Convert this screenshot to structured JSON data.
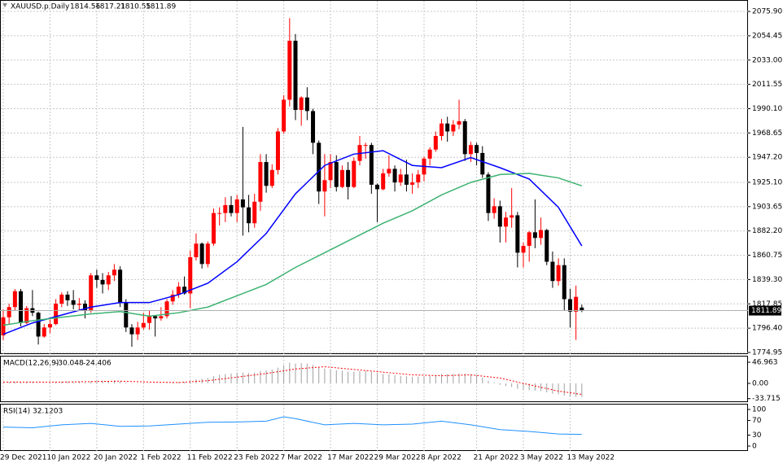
{
  "chart_data": [
    {
      "type": "candlestick",
      "title": "XAUUSD.p,Daily",
      "categories": [
        "29 Dec 2021",
        null,
        null,
        null,
        null,
        null,
        null,
        null,
        "10 Jan 2022",
        null,
        null,
        null,
        null,
        null,
        null,
        null,
        "20 Jan 2022",
        null,
        null,
        null,
        null,
        null,
        null,
        null,
        "1 Feb 2022",
        null,
        null,
        null,
        null,
        null,
        null,
        null,
        "11 Feb 2022",
        null,
        null,
        null,
        null,
        null,
        null,
        null,
        "23 Feb 2022",
        null,
        null,
        null,
        null,
        null,
        null,
        null,
        "7 Mar 2022",
        null,
        null,
        null,
        null,
        null,
        null,
        null,
        "17 Mar 2022",
        null,
        null,
        null,
        null,
        null,
        null,
        null,
        "29 Mar 2022",
        null,
        null,
        null,
        null,
        null,
        null,
        null,
        "8 Apr 2022",
        null,
        null,
        null,
        null,
        null,
        null,
        null,
        null,
        "21 Apr 2022",
        null,
        null,
        null,
        null,
        null,
        null,
        null,
        "3 May 2022",
        null,
        null,
        null,
        null,
        null,
        null,
        null,
        "13 May 2022",
        null,
        null
      ],
      "ohlc": [
        [
          1790,
          1813,
          1786,
          1806
        ],
        [
          1806,
          1818,
          1800,
          1815
        ],
        [
          1815,
          1831,
          1812,
          1829
        ],
        [
          1829,
          1831,
          1798,
          1801
        ],
        [
          1801,
          1816,
          1800,
          1814
        ],
        [
          1814,
          1830,
          1807,
          1810
        ],
        [
          1810,
          1811,
          1782,
          1789
        ],
        [
          1789,
          1800,
          1788,
          1797
        ],
        [
          1797,
          1804,
          1792,
          1800
        ],
        [
          1800,
          1822,
          1799,
          1818
        ],
        [
          1818,
          1828,
          1815,
          1826
        ],
        [
          1826,
          1829,
          1816,
          1821
        ],
        [
          1821,
          1830,
          1813,
          1817
        ],
        [
          1817,
          1823,
          1812,
          1818
        ],
        [
          1818,
          1821,
          1805,
          1812
        ],
        [
          1812,
          1845,
          1810,
          1843
        ],
        [
          1843,
          1848,
          1832,
          1839
        ],
        [
          1839,
          1845,
          1827,
          1835
        ],
        [
          1835,
          1846,
          1830,
          1843
        ],
        [
          1843,
          1853,
          1838,
          1848
        ],
        [
          1848,
          1851,
          1815,
          1819
        ],
        [
          1819,
          1822,
          1793,
          1797
        ],
        [
          1797,
          1800,
          1780,
          1791
        ],
        [
          1791,
          1802,
          1786,
          1797
        ],
        [
          1797,
          1810,
          1795,
          1801
        ],
        [
          1801,
          1812,
          1795,
          1807
        ],
        [
          1807,
          1808,
          1789,
          1805
        ],
        [
          1805,
          1815,
          1803,
          1807
        ],
        [
          1807,
          1822,
          1805,
          1820
        ],
        [
          1820,
          1830,
          1817,
          1826
        ],
        [
          1826,
          1837,
          1823,
          1833
        ],
        [
          1833,
          1842,
          1826,
          1827
        ],
        [
          1827,
          1865,
          1814,
          1859
        ],
        [
          1859,
          1880,
          1856,
          1871
        ],
        [
          1871,
          1872,
          1849,
          1853
        ],
        [
          1853,
          1873,
          1850,
          1871
        ],
        [
          1871,
          1902,
          1869,
          1898
        ],
        [
          1898,
          1903,
          1887,
          1898
        ],
        [
          1898,
          1912,
          1890,
          1905
        ],
        [
          1905,
          1913,
          1895,
          1898
        ],
        [
          1898,
          1914,
          1890,
          1910
        ],
        [
          1910,
          1974,
          1878,
          1903
        ],
        [
          1903,
          1914,
          1881,
          1889
        ],
        [
          1889,
          1915,
          1885,
          1908
        ],
        [
          1908,
          1950,
          1900,
          1943
        ],
        [
          1943,
          1950,
          1916,
          1922
        ],
        [
          1922,
          1941,
          1920,
          1936
        ],
        [
          1936,
          1973,
          1932,
          1970
        ],
        [
          1970,
          2002,
          1968,
          1998
        ],
        [
          1998,
          2070,
          1992,
          2050
        ],
        [
          2050,
          2056,
          1980,
          1989
        ],
        [
          1989,
          2001,
          1975,
          2000
        ],
        [
          2000,
          2009,
          1980,
          1988
        ],
        [
          1988,
          1990,
          1950,
          1960
        ],
        [
          1960,
          1962,
          1906,
          1917
        ],
        [
          1917,
          1950,
          1895,
          1927
        ],
        [
          1927,
          1950,
          1920,
          1943
        ],
        [
          1943,
          1949,
          1917,
          1921
        ],
        [
          1921,
          1940,
          1920,
          1936
        ],
        [
          1936,
          1943,
          1910,
          1921
        ],
        [
          1921,
          1947,
          1920,
          1944
        ],
        [
          1944,
          1966,
          1940,
          1958
        ],
        [
          1958,
          1960,
          1946,
          1958
        ],
        [
          1958,
          1960,
          1915,
          1923
        ],
        [
          1923,
          1924,
          1890,
          1919
        ],
        [
          1919,
          1937,
          1918,
          1933
        ],
        [
          1933,
          1949,
          1930,
          1937
        ],
        [
          1937,
          1940,
          1917,
          1925
        ],
        [
          1925,
          1937,
          1922,
          1932
        ],
        [
          1932,
          1945,
          1917,
          1923
        ],
        [
          1923,
          1933,
          1915,
          1925
        ],
        [
          1925,
          1936,
          1920,
          1932
        ],
        [
          1932,
          1948,
          1926,
          1946
        ],
        [
          1946,
          1956,
          1940,
          1954
        ],
        [
          1954,
          1970,
          1952,
          1966
        ],
        [
          1966,
          1981,
          1962,
          1977
        ],
        [
          1977,
          1983,
          1961,
          1970
        ],
        [
          1970,
          1980,
          1966,
          1976
        ],
        [
          1976,
          1998,
          1972,
          1979
        ],
        [
          1979,
          1981,
          1944,
          1950
        ],
        [
          1950,
          1961,
          1943,
          1958
        ],
        [
          1958,
          1960,
          1940,
          1951
        ],
        [
          1951,
          1957,
          1929,
          1932
        ],
        [
          1932,
          1934,
          1891,
          1898
        ],
        [
          1898,
          1911,
          1893,
          1904
        ],
        [
          1904,
          1909,
          1872,
          1886
        ],
        [
          1886,
          1899,
          1872,
          1894
        ],
        [
          1894,
          1920,
          1885,
          1896
        ],
        [
          1896,
          1899,
          1850,
          1863
        ],
        [
          1863,
          1872,
          1850,
          1869
        ],
        [
          1869,
          1882,
          1855,
          1881
        ],
        [
          1881,
          1910,
          1867,
          1876
        ],
        [
          1876,
          1894,
          1870,
          1883
        ],
        [
          1883,
          1884,
          1852,
          1855
        ],
        [
          1855,
          1864,
          1832,
          1838
        ],
        [
          1838,
          1858,
          1834,
          1852
        ],
        [
          1852,
          1858,
          1812,
          1822
        ],
        [
          1822,
          1831,
          1797,
          1811
        ],
        [
          1811,
          1834,
          1786,
          1824
        ],
        [
          1814.56,
          1817.21,
          1810.55,
          1811.89
        ]
      ],
      "up_color": "#ff0000",
      "down_color": "#000000",
      "series": [
        {
          "color": "#0000ff",
          "x": [
            0,
            5,
            10,
            15,
            20,
            25,
            30,
            35,
            40,
            45,
            50,
            55,
            60,
            65,
            70,
            75,
            80,
            85,
            90,
            95,
            99
          ],
          "values": [
            1791,
            1801,
            1808,
            1815,
            1819,
            1819,
            1826,
            1836,
            1855,
            1880,
            1915,
            1940,
            1950,
            1953,
            1940,
            1938,
            1947,
            1938,
            1928,
            1903,
            1869
          ]
        },
        {
          "color": "#3cb371",
          "x": [
            0,
            5,
            10,
            15,
            20,
            25,
            30,
            35,
            40,
            45,
            50,
            55,
            60,
            65,
            70,
            75,
            80,
            85,
            90,
            95,
            99
          ],
          "values": [
            1799,
            1803,
            1806,
            1809,
            1811,
            1807,
            1810,
            1815,
            1825,
            1835,
            1850,
            1863,
            1876,
            1889,
            1900,
            1914,
            1925,
            1932,
            1933,
            1929,
            1922
          ]
        }
      ],
      "ylim": [
        1773.5,
        2086
      ],
      "yticks": [
        {
          "value": 2075.9,
          "label": "2075.90"
        },
        2054.45,
        {
          "value": 2033,
          "label": "2033.00"
        },
        2011.55,
        {
          "value": 1990.1,
          "label": "1990.10"
        },
        1968.65,
        {
          "value": 1947.2,
          "label": "1947.20"
        },
        {
          "value": 1925.1,
          "label": "1925.10"
        },
        1903.65,
        {
          "value": 1882.2,
          "label": "1882.20"
        },
        1860.75,
        {
          "value": 1839.3,
          "label": "1839.30"
        },
        1817.85,
        {
          "value": 1796.4,
          "label": "1796.40"
        },
        1774.95
      ],
      "grid": true
    },
    {
      "type": "macd",
      "title": "MACD(12,26,9)",
      "values": [
        2,
        3,
        4,
        2,
        3,
        3,
        1,
        1,
        1,
        3,
        4,
        4,
        3,
        3,
        2,
        5,
        6,
        6,
        6,
        7,
        5,
        2,
        0,
        -1,
        -1,
        0,
        0,
        0,
        1,
        2,
        3,
        3,
        6,
        9,
        10,
        12,
        16,
        19,
        21,
        22,
        24,
        24,
        23,
        24,
        28,
        29,
        31,
        35,
        40,
        46,
        44,
        45,
        44,
        41,
        36,
        33,
        32,
        29,
        28,
        26,
        26,
        27,
        28,
        26,
        23,
        21,
        20,
        18,
        17,
        16,
        15,
        15,
        16,
        17,
        19,
        21,
        21,
        21,
        22,
        22,
        20,
        18,
        13,
        6,
        2,
        -3,
        -6,
        -8,
        -12,
        -14,
        -15,
        -16,
        -17,
        -20,
        -23,
        -24,
        -27,
        -29,
        -30,
        -30.048
      ],
      "color": "#a0a0a0",
      "signal": {
        "color": "#ff0000",
        "x": [
          0,
          5,
          10,
          15,
          20,
          25,
          30,
          35,
          40,
          45,
          50,
          55,
          60,
          65,
          70,
          75,
          80,
          85,
          90,
          95,
          99
        ],
        "values": [
          3,
          3,
          3,
          4,
          5,
          3,
          2,
          6,
          14,
          22,
          32,
          37,
          31,
          25,
          19,
          17,
          19,
          12,
          -3,
          -17,
          -24.406
        ]
      },
      "ylim": [
        -41.5,
        61.4
      ],
      "yticks": [
        46.963,
        {
          "value": 0,
          "label": "0.00"
        },
        -33.715
      ],
      "grid": false
    },
    {
      "type": "line",
      "title": "RSI(14)",
      "series": [
        {
          "color": "#1e90ff",
          "x": [
            0,
            5,
            10,
            15,
            20,
            25,
            30,
            35,
            40,
            45,
            48,
            50,
            55,
            60,
            65,
            70,
            75,
            80,
            85,
            90,
            95,
            99
          ],
          "values": [
            52,
            50,
            58,
            62,
            54,
            55,
            60,
            65,
            66,
            68,
            80,
            75,
            58,
            62,
            58,
            60,
            68,
            58,
            45,
            40,
            33,
            32.1203
          ]
        }
      ],
      "ylim": [
        -13.3,
        115.6
      ],
      "yticks": [
        100,
        70,
        30,
        0
      ],
      "grid": false
    }
  ]
}
